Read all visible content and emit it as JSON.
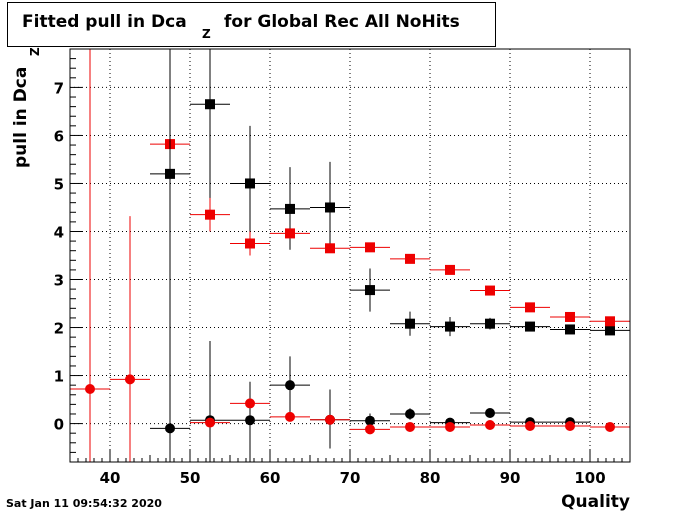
{
  "title": {
    "main": "Fitted pull in Dca",
    "subscript": "Z",
    "rest": "for Global Rec All NoHits"
  },
  "timestamp": "Sat Jan 11 09:54:32 2020",
  "colors": {
    "black_series": "#000000",
    "red_series": "#ee0000",
    "grid": "#000000"
  },
  "chart_data": {
    "type": "scatter",
    "title": "Fitted pull in Dca_Z for Global Rec All NoHits",
    "xlabel": "Quality",
    "ylabel": "pull in Dca",
    "ylabel_subscript": "Z",
    "xlim": [
      35,
      105
    ],
    "ylim": [
      -0.8,
      7.8
    ],
    "xticks": [
      40,
      50,
      60,
      70,
      80,
      90,
      100
    ],
    "yticks": [
      0,
      1,
      2,
      3,
      4,
      5,
      6,
      7
    ],
    "grid": true,
    "series": [
      {
        "marker": "square",
        "color": "#000000",
        "points": [
          {
            "x": 47.5,
            "y": 5.2,
            "xerr": 2.5,
            "yerr_lo": 0.6,
            "yerr_hi": 2.6
          },
          {
            "x": 52.5,
            "y": 6.65,
            "xerr": 2.5,
            "yerr_lo": 2.2,
            "yerr_hi": 1.15
          },
          {
            "x": 57.5,
            "y": 5.0,
            "xerr": 2.5,
            "yerr_lo": 1.15,
            "yerr_hi": 1.2
          },
          {
            "x": 62.5,
            "y": 4.47,
            "xerr": 2.5,
            "yerr_lo": 0.85,
            "yerr_hi": 0.87
          },
          {
            "x": 67.5,
            "y": 4.5,
            "xerr": 2.5,
            "yerr_lo": 0.85,
            "yerr_hi": 0.95
          },
          {
            "x": 72.5,
            "y": 2.78,
            "xerr": 2.5,
            "yerr_lo": 0.45,
            "yerr_hi": 0.45
          },
          {
            "x": 77.5,
            "y": 2.08,
            "xerr": 2.5,
            "yerr_lo": 0.25,
            "yerr_hi": 0.25
          },
          {
            "x": 82.5,
            "y": 2.02,
            "xerr": 2.5,
            "yerr_lo": 0.2,
            "yerr_hi": 0.2
          },
          {
            "x": 87.5,
            "y": 2.08,
            "xerr": 2.5,
            "yerr_lo": 0.12,
            "yerr_hi": 0.12
          },
          {
            "x": 92.5,
            "y": 2.02,
            "xerr": 2.5,
            "yerr_lo": 0.08,
            "yerr_hi": 0.08
          },
          {
            "x": 97.5,
            "y": 1.96,
            "xerr": 2.5,
            "yerr_lo": 0.07,
            "yerr_hi": 0.07
          },
          {
            "x": 102.5,
            "y": 1.94,
            "xerr": 2.5,
            "yerr_lo": 0.07,
            "yerr_hi": 0.07
          }
        ]
      },
      {
        "marker": "square",
        "color": "#ee0000",
        "points": [
          {
            "x": 47.5,
            "y": 5.82,
            "xerr": 2.5,
            "yerr_lo": 1.2,
            "yerr_hi": 1.2
          },
          {
            "x": 52.5,
            "y": 4.35,
            "xerr": 2.5,
            "yerr_lo": 0.35,
            "yerr_hi": 0.35
          },
          {
            "x": 57.5,
            "y": 3.75,
            "xerr": 2.5,
            "yerr_lo": 0.25,
            "yerr_hi": 0.25
          },
          {
            "x": 62.5,
            "y": 3.96,
            "xerr": 2.5,
            "yerr_lo": 0.1,
            "yerr_hi": 0.1
          },
          {
            "x": 67.5,
            "y": 3.65,
            "xerr": 2.5,
            "yerr_lo": 0.08,
            "yerr_hi": 0.08
          },
          {
            "x": 72.5,
            "y": 3.67,
            "xerr": 2.5,
            "yerr_lo": 0.07,
            "yerr_hi": 0.07
          },
          {
            "x": 77.5,
            "y": 3.43,
            "xerr": 2.5,
            "yerr_lo": 0.06,
            "yerr_hi": 0.06
          },
          {
            "x": 82.5,
            "y": 3.2,
            "xerr": 2.5,
            "yerr_lo": 0.06,
            "yerr_hi": 0.06
          },
          {
            "x": 87.5,
            "y": 2.77,
            "xerr": 2.5,
            "yerr_lo": 0.05,
            "yerr_hi": 0.05
          },
          {
            "x": 92.5,
            "y": 2.42,
            "xerr": 2.5,
            "yerr_lo": 0.05,
            "yerr_hi": 0.05
          },
          {
            "x": 97.5,
            "y": 2.22,
            "xerr": 2.5,
            "yerr_lo": 0.05,
            "yerr_hi": 0.05
          },
          {
            "x": 102.5,
            "y": 2.13,
            "xerr": 2.5,
            "yerr_lo": 0.05,
            "yerr_hi": 0.05
          }
        ]
      },
      {
        "marker": "circle",
        "color": "#000000",
        "points": [
          {
            "x": 47.5,
            "y": -0.1,
            "xerr": 2.5,
            "yerr_lo": 0.7,
            "yerr_hi": 7.9
          },
          {
            "x": 52.5,
            "y": 0.07,
            "xerr": 2.5,
            "yerr_lo": 0.9,
            "yerr_hi": 1.65
          },
          {
            "x": 57.5,
            "y": 0.07,
            "xerr": 2.5,
            "yerr_lo": 0.9,
            "yerr_hi": 0.8
          },
          {
            "x": 62.5,
            "y": 0.8,
            "xerr": 2.5,
            "yerr_lo": 0.6,
            "yerr_hi": 0.6
          },
          {
            "x": 67.5,
            "y": 0.08,
            "xerr": 2.5,
            "yerr_lo": 0.6,
            "yerr_hi": 0.63
          },
          {
            "x": 72.5,
            "y": 0.06,
            "xerr": 2.5,
            "yerr_lo": 0.15,
            "yerr_hi": 0.15
          },
          {
            "x": 77.5,
            "y": 0.2,
            "xerr": 2.5,
            "yerr_lo": 0.12,
            "yerr_hi": 0.12
          },
          {
            "x": 82.5,
            "y": 0.02,
            "xerr": 2.5,
            "yerr_lo": 0.07,
            "yerr_hi": 0.07
          },
          {
            "x": 87.5,
            "y": 0.22,
            "xerr": 2.5,
            "yerr_lo": 0.06,
            "yerr_hi": 0.06
          },
          {
            "x": 92.5,
            "y": 0.03,
            "xerr": 2.5,
            "yerr_lo": 0.04,
            "yerr_hi": 0.04
          },
          {
            "x": 97.5,
            "y": 0.03,
            "xerr": 2.5,
            "yerr_lo": 0.04,
            "yerr_hi": 0.04
          }
        ]
      },
      {
        "marker": "circle",
        "color": "#ee0000",
        "points": [
          {
            "x": 37.5,
            "y": 0.72,
            "xerr": 2.5,
            "yerr_lo": 1.6,
            "yerr_hi": 7.1
          },
          {
            "x": 42.5,
            "y": 0.92,
            "xerr": 2.5,
            "yerr_lo": 1.8,
            "yerr_hi": 3.4
          },
          {
            "x": 52.5,
            "y": 0.02,
            "xerr": 2.5,
            "yerr_lo": 0.05,
            "yerr_hi": 0.05
          },
          {
            "x": 57.5,
            "y": 0.42,
            "xerr": 2.5,
            "yerr_lo": 0.07,
            "yerr_hi": 0.07
          },
          {
            "x": 62.5,
            "y": 0.14,
            "xerr": 2.5,
            "yerr_lo": 0.06,
            "yerr_hi": 0.06
          },
          {
            "x": 67.5,
            "y": 0.08,
            "xerr": 2.5,
            "yerr_lo": 0.05,
            "yerr_hi": 0.05
          },
          {
            "x": 72.5,
            "y": -0.12,
            "xerr": 2.5,
            "yerr_lo": 0.04,
            "yerr_hi": 0.04
          },
          {
            "x": 77.5,
            "y": -0.07,
            "xerr": 2.5,
            "yerr_lo": 0.03,
            "yerr_hi": 0.03
          },
          {
            "x": 82.5,
            "y": -0.07,
            "xerr": 2.5,
            "yerr_lo": 0.03,
            "yerr_hi": 0.03
          },
          {
            "x": 87.5,
            "y": -0.03,
            "xerr": 2.5,
            "yerr_lo": 0.03,
            "yerr_hi": 0.03
          },
          {
            "x": 92.5,
            "y": -0.05,
            "xerr": 2.5,
            "yerr_lo": 0.03,
            "yerr_hi": 0.03
          },
          {
            "x": 97.5,
            "y": -0.05,
            "xerr": 2.5,
            "yerr_lo": 0.03,
            "yerr_hi": 0.03
          },
          {
            "x": 102.5,
            "y": -0.07,
            "xerr": 2.5,
            "yerr_lo": 0.03,
            "yerr_hi": 0.03
          }
        ]
      }
    ]
  }
}
